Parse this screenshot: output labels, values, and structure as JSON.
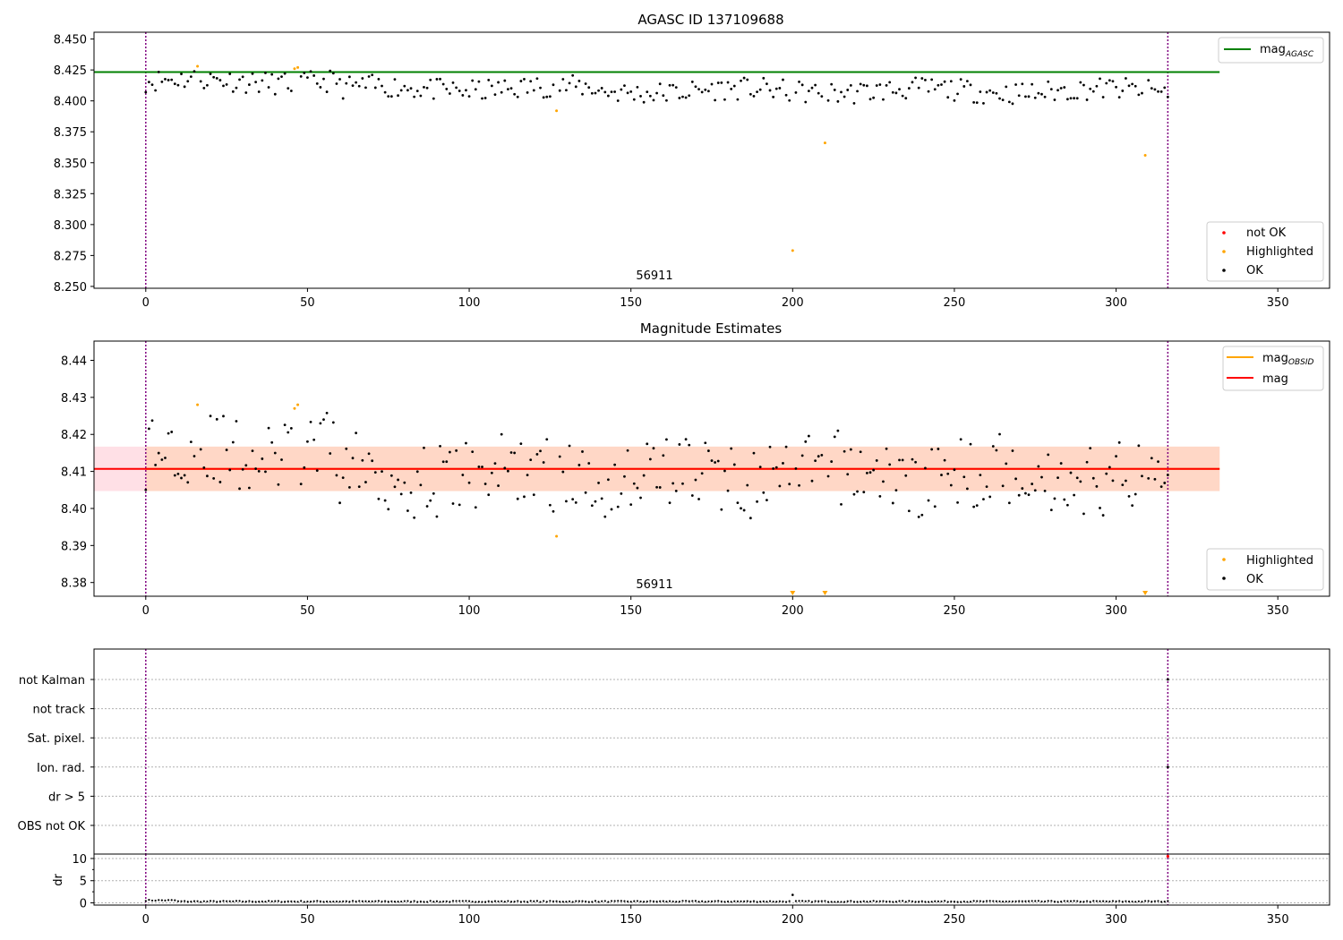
{
  "chart_data": [
    {
      "type": "scatter",
      "title": "AGASC ID 137109688",
      "annotation": "56911",
      "xlim": [
        -16,
        366
      ],
      "ylim": [
        8.2485,
        8.4555
      ],
      "xticks": [
        0,
        50,
        100,
        150,
        200,
        250,
        300,
        350
      ],
      "yticks": [
        "8.250",
        "8.275",
        "8.300",
        "8.325",
        "8.350",
        "8.375",
        "8.400",
        "8.425",
        "8.450"
      ],
      "vlines": [
        0,
        316
      ],
      "hline": {
        "y": 8.4233,
        "x_range": [
          -16,
          332
        ],
        "color": "#008000"
      },
      "legend_top": [
        {
          "name": "mag",
          "sub": "AGASC",
          "color": "#008000"
        }
      ],
      "legend_bottom": [
        {
          "name": "not OK",
          "color": "#ff0000"
        },
        {
          "name": "Highlighted",
          "color": "#ffa500"
        },
        {
          "name": "OK",
          "color": "#000000"
        }
      ],
      "highlighted": [
        [
          16,
          8.428
        ],
        [
          46,
          8.426
        ],
        [
          47,
          8.427
        ],
        [
          127,
          8.392
        ],
        [
          200,
          8.279
        ],
        [
          210,
          8.366
        ],
        [
          309,
          8.356
        ]
      ],
      "ok_seed": 11
    },
    {
      "type": "scatter",
      "title": "Magnitude Estimates",
      "annotation": "56911",
      "xlim": [
        -16,
        366
      ],
      "ylim": [
        8.3763,
        8.4452
      ],
      "xticks": [
        0,
        50,
        100,
        150,
        200,
        250,
        300,
        350
      ],
      "yticks": [
        "8.38",
        "8.39",
        "8.40",
        "8.41",
        "8.42",
        "8.43",
        "8.44"
      ],
      "vlines": [
        0,
        316
      ],
      "band": {
        "center": 8.4107,
        "half_width": 0.006,
        "x_range": [
          -16,
          332
        ]
      },
      "legend_top": [
        {
          "name": "mag",
          "sub": "OBSID",
          "color": "#ffa500"
        },
        {
          "name": "mag",
          "sub": "",
          "color": "#ff0000"
        }
      ],
      "legend_bottom": [
        {
          "name": "Highlighted",
          "color": "#ffa500"
        },
        {
          "name": "OK",
          "color": "#000000"
        }
      ],
      "highlighted": [
        [
          16,
          8.428
        ],
        [
          46,
          8.427
        ],
        [
          47,
          8.428
        ],
        [
          127,
          8.3925
        ]
      ],
      "out_of_range_markers": [
        200,
        210,
        309
      ],
      "ok_seed": 29
    },
    {
      "type": "scatter",
      "title": "",
      "xlim": [
        -16,
        366
      ],
      "categories": [
        "not Kalman",
        "not track",
        "Sat. pixel.",
        "Ion. rad.",
        "dr > 5",
        "OBS not OK"
      ],
      "vlines": [
        0,
        316
      ],
      "marks": [
        {
          "category": "not Kalman",
          "x": 316
        },
        {
          "category": "Ion. rad.",
          "x": 316
        }
      ]
    },
    {
      "type": "scatter",
      "title": "",
      "ylabel": "dr",
      "xlim": [
        -16,
        366
      ],
      "ylim": [
        -0.5,
        11
      ],
      "xticks": [
        0,
        50,
        100,
        150,
        200,
        250,
        300,
        350
      ],
      "yticks": [
        "0",
        "5",
        "10"
      ],
      "vlines": [
        0,
        316
      ],
      "outliers": [
        [
          200,
          1.8
        ],
        [
          316,
          10.5
        ]
      ],
      "ok_seed": 7
    }
  ]
}
